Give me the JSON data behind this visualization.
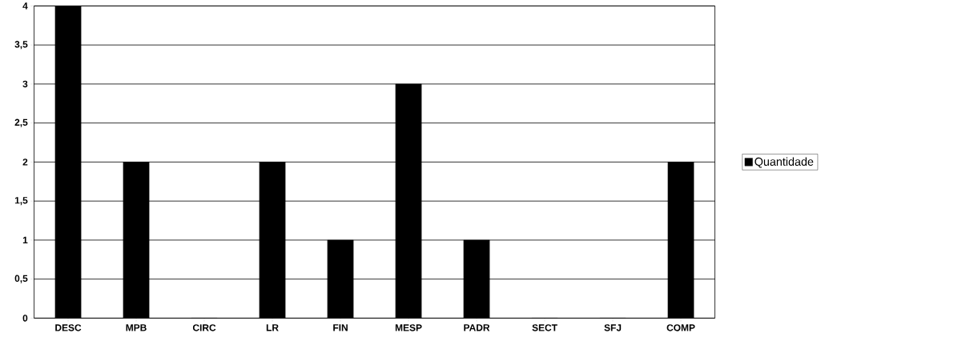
{
  "chart_data": {
    "type": "bar",
    "categories": [
      "DESC",
      "MPB",
      "CIRC",
      "LR",
      "FIN",
      "MESP",
      "PADR",
      "SECT",
      "SFJ",
      "COMP"
    ],
    "series": [
      {
        "name": "Quantidade",
        "color": "#000000",
        "values": [
          4,
          2,
          0,
          2,
          1,
          3,
          1,
          0,
          0,
          2
        ]
      }
    ],
    "ylim": [
      0,
      4
    ],
    "yticks": [
      0,
      {
        "value": 0.5,
        "label": "0,5"
      },
      1,
      {
        "value": 1.5,
        "label": "1,5"
      },
      2,
      {
        "value": 2.5,
        "label": "2,5"
      },
      3,
      {
        "value": 3.5,
        "label": "3,5"
      },
      4
    ],
    "grid": "y",
    "legend": "right"
  }
}
